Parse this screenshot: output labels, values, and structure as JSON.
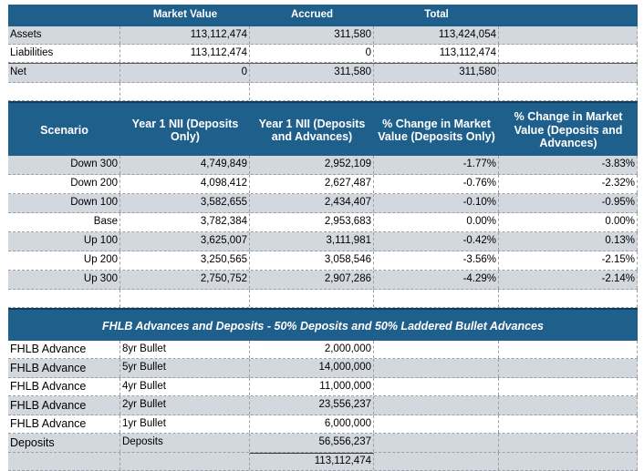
{
  "summary": {
    "headers": [
      "",
      "Market Value",
      "Accrued",
      "Total"
    ],
    "rows": [
      {
        "label": "Assets",
        "market_value": "113,112,474",
        "accrued": "311,580",
        "total": "113,424,054"
      },
      {
        "label": "Liabilities",
        "market_value": "113,112,474",
        "accrued": "0",
        "total": "113,112,474"
      },
      {
        "label": "Net",
        "market_value": "0",
        "accrued": "311,580",
        "total": "311,580"
      }
    ]
  },
  "scenarios": {
    "headers": [
      "Scenario",
      "Year 1 NII (Deposits Only)",
      "Year 1 NII (Deposits and Advances)",
      "% Change in Market Value (Deposits Only)",
      "% Change in Market Value (Deposits and Advances)"
    ],
    "rows": [
      {
        "scenario": "Down 300",
        "nii_dep": "4,749,849",
        "nii_dep_adv": "2,952,109",
        "mv_dep": "-1.77%",
        "mv_dep_adv": "-3.83%"
      },
      {
        "scenario": "Down 200",
        "nii_dep": "4,098,412",
        "nii_dep_adv": "2,627,487",
        "mv_dep": "-0.76%",
        "mv_dep_adv": "-2.32%"
      },
      {
        "scenario": "Down 100",
        "nii_dep": "3,582,655",
        "nii_dep_adv": "2,434,407",
        "mv_dep": "-0.10%",
        "mv_dep_adv": "-0.95%"
      },
      {
        "scenario": "Base",
        "nii_dep": "3,782,384",
        "nii_dep_adv": "2,953,683",
        "mv_dep": "0.00%",
        "mv_dep_adv": "0.00%"
      },
      {
        "scenario": "Up 100",
        "nii_dep": "3,625,007",
        "nii_dep_adv": "3,111,981",
        "mv_dep": "-0.42%",
        "mv_dep_adv": "0.13%"
      },
      {
        "scenario": "Up 200",
        "nii_dep": "3,250,565",
        "nii_dep_adv": "3,058,546",
        "mv_dep": "-3.56%",
        "mv_dep_adv": "-2.15%"
      },
      {
        "scenario": "Up 300",
        "nii_dep": "2,750,752",
        "nii_dep_adv": "2,907,286",
        "mv_dep": "-4.29%",
        "mv_dep_adv": "-2.14%"
      }
    ]
  },
  "fhlb": {
    "title": "FHLB Advances and Deposits - 50% Deposits and 50% Laddered Bullet Advances",
    "rows": [
      {
        "type": "FHLB Advance",
        "term": "8yr Bullet",
        "amount": "2,000,000"
      },
      {
        "type": "FHLB Advance",
        "term": "5yr Bullet",
        "amount": "14,000,000"
      },
      {
        "type": "FHLB Advance",
        "term": "4yr Bullet",
        "amount": "11,000,000"
      },
      {
        "type": "FHLB Advance",
        "term": "2yr Bullet",
        "amount": "23,556,237"
      },
      {
        "type": "FHLB Advance",
        "term": "1yr Bullet",
        "amount": "6,000,000"
      },
      {
        "type": "Deposits",
        "term": "Deposits",
        "amount": "56,556,237"
      }
    ],
    "total": "113,112,474"
  }
}
